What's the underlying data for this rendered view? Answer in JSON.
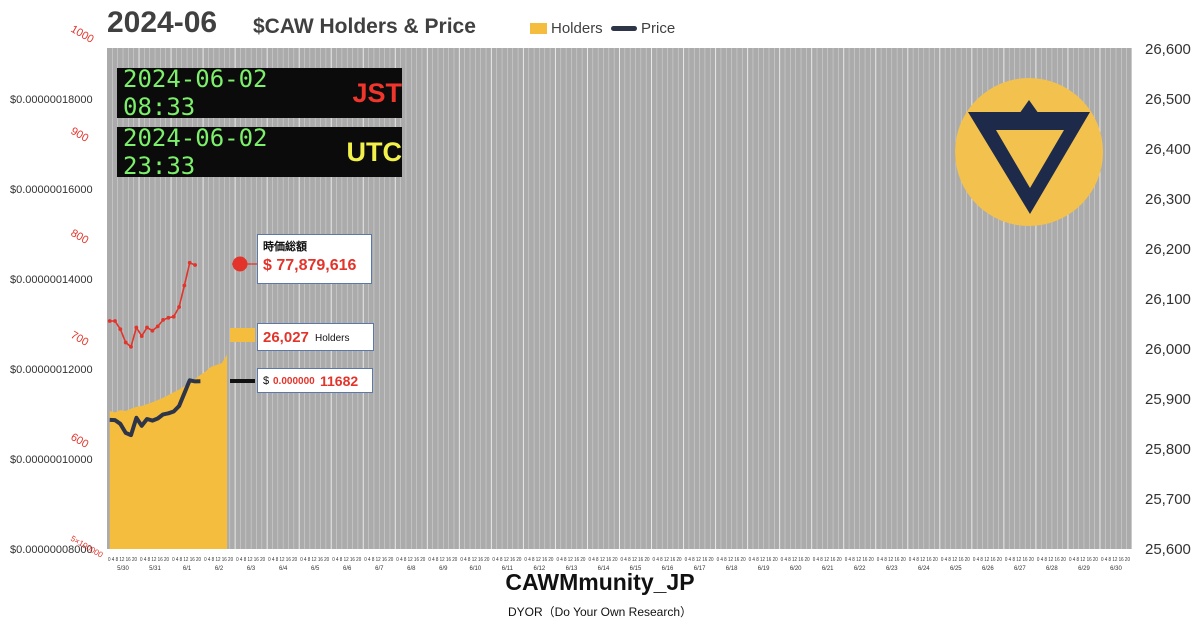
{
  "header": {
    "year": "2024-06",
    "title": "$CAW Holders & Price",
    "legend": [
      {
        "label": "Holders",
        "color": "#F5BD3D"
      },
      {
        "label": "Price",
        "color": "#2E3548"
      }
    ]
  },
  "clocks": {
    "jst": {
      "time": "2024-06-02 08:33",
      "zone": "JST"
    },
    "utc": {
      "time": "2024-06-02 23:33",
      "zone": "UTC"
    }
  },
  "callouts": {
    "mcap_label": "時価総額",
    "mcap_value": "$ 77,879,616",
    "holders_value": "26,027",
    "holders_unit": "Holders",
    "price_dollar": "$",
    "price_small": "0.000000",
    "price_big": "11682"
  },
  "footer": {
    "brand": "CAWMmunity_JP",
    "dyor": "DYOR（Do Your Own Research）"
  },
  "chart_data": {
    "type": "line",
    "plot_background": "#ABABAB",
    "grid": true,
    "left_axis": {
      "ticks": [
        "$0.00000008000",
        "$0.00000010000",
        "$0.00000012000",
        "$0.00000014000",
        "$0.00000016000",
        "$0.00000018000"
      ],
      "range": [
        8e-08,
        1.9e-07
      ]
    },
    "red_axis": {
      "ticks": [
        "1000",
        "900",
        "800",
        "700",
        "600",
        "5×100000"
      ],
      "color": "#E2342B"
    },
    "right_axis": {
      "ticks": [
        "25,600",
        "25,700",
        "25,800",
        "25,900",
        "26,000",
        "26,100",
        "26,200",
        "26,300",
        "26,400",
        "26,500",
        "26,600"
      ],
      "range": [
        25600,
        26700
      ]
    },
    "x_dates": [
      "5/30",
      "5/31",
      "6/1",
      "6/2",
      "6/3",
      "6/4",
      "6/5",
      "6/6",
      "6/7",
      "6/8",
      "6/9",
      "6/10",
      "6/11",
      "6/12",
      "6/13",
      "6/14",
      "6/15",
      "6/16",
      "6/17",
      "6/18",
      "6/19",
      "6/20",
      "6/21",
      "6/22",
      "6/23",
      "6/24",
      "6/25",
      "6/26",
      "6/27",
      "6/28",
      "6/29",
      "6/30"
    ],
    "hour_ticks": [
      "0",
      "4",
      "8",
      "12",
      "16",
      "20"
    ],
    "series": [
      {
        "name": "Holders",
        "kind": "area",
        "axis": "right",
        "color": "#F5BD3D",
        "values": [
          25903,
          25900,
          25905,
          25903,
          25908,
          25912,
          25914,
          25918,
          25922,
          25927,
          25932,
          25938,
          25944,
          25950,
          25957,
          25966,
          25974,
          25982,
          25990,
          26000,
          26004,
          26008,
          26027
        ]
      },
      {
        "name": "Price",
        "kind": "line",
        "axis": "left",
        "color": "#2E3548",
        "values": [
          1.0835e-07,
          1.083e-07,
          1.075e-07,
          1.055e-07,
          1.05e-07,
          1.088e-07,
          1.0705e-07,
          1.0855e-07,
          1.082e-07,
          1.0865e-07,
          1.0955e-07,
          1.098e-07,
          1.102e-07,
          1.114e-07,
          1.142e-07,
          1.1705e-07,
          1.168e-07,
          1.1682e-07
        ]
      }
    ],
    "market_cap_series": {
      "color": "#E2342B",
      "values": [
        51.0,
        51.0,
        49.5,
        47.0,
        46.2,
        49.8,
        48.2,
        49.8,
        49.2,
        50.0,
        51.2,
        51.6,
        51.8,
        53.6,
        57.6,
        61.8,
        61.4,
        77.879616
      ]
    }
  }
}
